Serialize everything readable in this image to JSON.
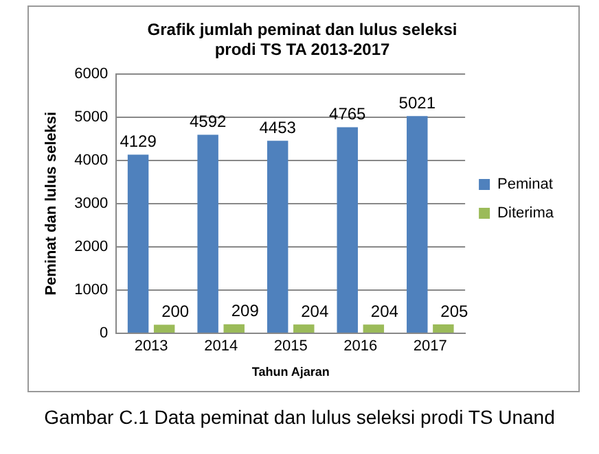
{
  "chart_data": {
    "type": "bar",
    "title": "Grafik jumlah peminat dan lulus seleksi\nprodi TS TA 2013-2017",
    "xlabel": "Tahun Ajaran",
    "ylabel": "Peminat dan lulus seleksi",
    "categories": [
      "2013",
      "2014",
      "2015",
      "2016",
      "2017"
    ],
    "series": [
      {
        "name": "Peminat",
        "color": "#4f81bd",
        "values": [
          4129,
          4592,
          4453,
          4765,
          5021
        ]
      },
      {
        "name": "Diterima",
        "color": "#9bbb59",
        "values": [
          200,
          209,
          204,
          204,
          205
        ]
      }
    ],
    "ylim": [
      0,
      6000
    ],
    "yticks": [
      0,
      1000,
      2000,
      3000,
      4000,
      5000,
      6000
    ],
    "grid": "y",
    "legend": "right",
    "data_labels": true,
    "annotations": [
      "Gambar C.1 Data peminat dan lulus seleksi prodi TS Unand"
    ]
  }
}
